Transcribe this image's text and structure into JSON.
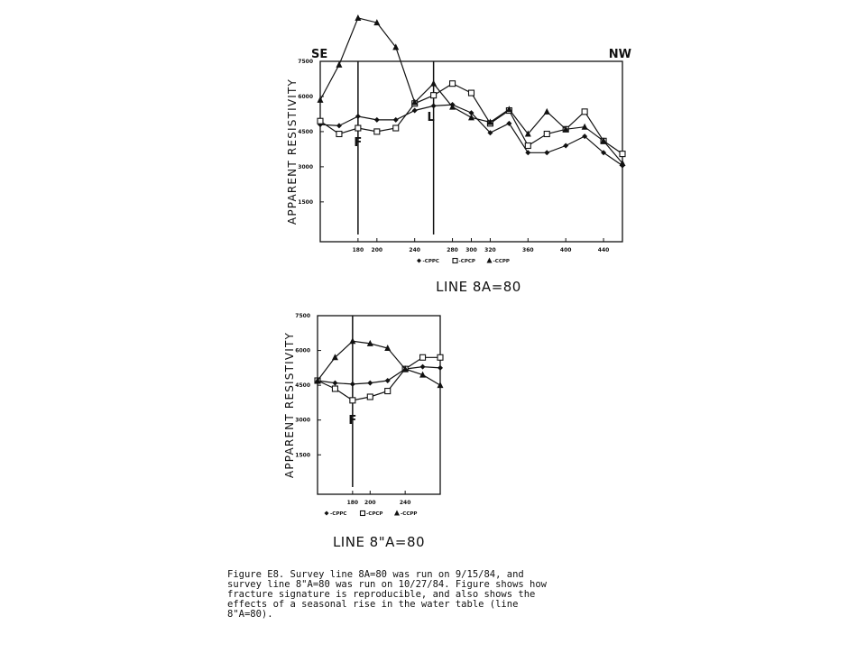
{
  "chart_data": [
    {
      "type": "line",
      "title": "LINE 8A=80",
      "y_label": "APPARENT RESISTIVITY",
      "corner_labels": [
        "SE",
        "NW"
      ],
      "x": [
        140,
        160,
        180,
        200,
        220,
        240,
        260,
        280,
        300,
        320,
        340,
        360,
        380,
        400,
        420,
        440,
        460
      ],
      "xlim": [
        140,
        460
      ],
      "ylim": [
        -200,
        7500
      ],
      "xticks": [
        180,
        200,
        240,
        280,
        300,
        320,
        360,
        400,
        440
      ],
      "yticks": [
        1500,
        3000,
        4500,
        6000,
        7500
      ],
      "vlines": [
        {
          "x": 180,
          "label": "F"
        },
        {
          "x": 260,
          "label": "L"
        }
      ],
      "legend": "bottom",
      "series": [
        {
          "name": "-CPPC",
          "marker": "diamond",
          "color": "#111111",
          "values": [
            4800,
            4750,
            5150,
            5000,
            5000,
            5400,
            5600,
            5650,
            5300,
            4450,
            4850,
            3600,
            3600,
            3900,
            4300,
            3600,
            3050
          ]
        },
        {
          "name": "-CPCP",
          "marker": "square",
          "color": "#111111",
          "values": [
            4950,
            4400,
            4650,
            4500,
            4650,
            5700,
            6050,
            6550,
            6150,
            4850,
            5400,
            3900,
            4400,
            4600,
            5350,
            4100,
            3550
          ]
        },
        {
          "name": "-CCPP",
          "marker": "triangle",
          "color": "#111111",
          "values": [
            5850,
            7350,
            9350,
            9150,
            8100,
            5750,
            6550,
            5550,
            5100,
            4900,
            5450,
            4400,
            5350,
            4600,
            4700,
            4100,
            3150
          ]
        }
      ]
    },
    {
      "type": "line",
      "title": "LINE 8\"A=80",
      "y_label": "APPARENT RESISTIVITY",
      "x": [
        140,
        160,
        180,
        200,
        220,
        240,
        260,
        280
      ],
      "xlim": [
        140,
        280
      ],
      "ylim": [
        -200,
        7500
      ],
      "xticks": [
        180,
        200,
        240
      ],
      "yticks": [
        1500,
        3000,
        4500,
        6000,
        7500
      ],
      "vlines": [
        {
          "x": 180,
          "label": "F"
        }
      ],
      "legend": "bottom",
      "series": [
        {
          "name": "-CPPC",
          "marker": "diamond",
          "color": "#111111",
          "values": [
            4700,
            4600,
            4550,
            4600,
            4700,
            5200,
            5300,
            5250
          ]
        },
        {
          "name": "-CPCP",
          "marker": "square",
          "color": "#111111",
          "values": [
            4700,
            4350,
            3850,
            4000,
            4250,
            5200,
            5700,
            5700
          ]
        },
        {
          "name": "-CCPP",
          "marker": "triangle",
          "color": "#111111",
          "values": [
            4700,
            5700,
            6400,
            6300,
            6100,
            5200,
            4950,
            4500
          ]
        }
      ]
    }
  ],
  "caption": [
    "Figure E8.  Survey line 8A=80 was run on 9/15/84, and",
    "survey line 8\"A=80 was run on 10/27/84.  Figure shows how",
    "fracture signature is reproducible, and also shows the",
    "effects of a seasonal rise in the water table (line",
    "8\"A=80)."
  ]
}
